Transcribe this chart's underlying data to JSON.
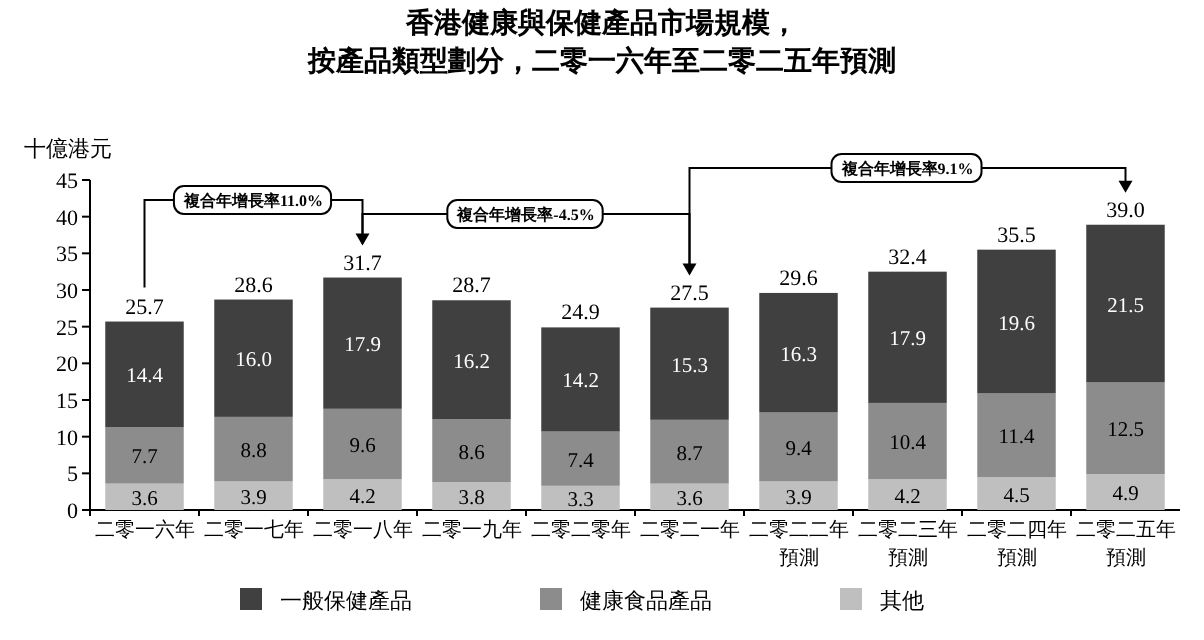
{
  "chart_data": {
    "type": "bar",
    "stacked": true,
    "title": "香港健康與保健產品市場規模，按產品類型劃分，二零一六年至二零二五年預測",
    "ylabel": "十億港元",
    "categories": [
      "二零一六年",
      "二零一七年",
      "二零一八年",
      "二零一九年",
      "二零二零年",
      "二零二一年",
      "二零二二年預測",
      "二零二三年預測",
      "二零二四年預測",
      "二零二五年預測"
    ],
    "series": [
      {
        "name": "其他",
        "color": "#bfbfbf",
        "values": [
          3.6,
          3.9,
          4.2,
          3.8,
          3.3,
          3.6,
          3.9,
          4.2,
          4.5,
          4.9
        ],
        "value_labels": [
          "3.6",
          "3.9",
          "4.2",
          "3.8",
          "3.3",
          "3.6",
          "3.9",
          "4.2",
          "4.5",
          "4.9"
        ]
      },
      {
        "name": "健康食品產品",
        "color": "#8c8c8c",
        "values": [
          7.7,
          8.8,
          9.6,
          8.6,
          7.4,
          8.7,
          9.4,
          10.4,
          11.4,
          12.5
        ],
        "value_labels": [
          "7.7",
          "8.8",
          "9.6",
          "8.6",
          "7.4",
          "8.7",
          "9.4",
          "10.4",
          "11.4",
          "12.5"
        ]
      },
      {
        "name": "一般保健產品",
        "color": "#404040",
        "values": [
          14.4,
          16.0,
          17.9,
          16.2,
          14.2,
          15.3,
          16.3,
          17.9,
          19.6,
          21.5
        ],
        "value_labels": [
          "14.4",
          "16.0",
          "17.9",
          "16.2",
          "14.2",
          "15.3",
          "16.3",
          "17.9",
          "19.6",
          "21.5"
        ]
      }
    ],
    "totals": [
      "25.7",
      "28.6",
      "31.7",
      "28.7",
      "24.9",
      "27.5",
      "29.6",
      "32.4",
      "35.5",
      "39.0"
    ],
    "annotations": [
      "複合年增長率11.0%",
      "複合年增長率-4.5%",
      "複合年增長率9.1%"
    ],
    "ylim": [
      0,
      45
    ],
    "yticks": [
      0,
      5,
      10,
      15,
      20,
      25,
      30,
      35,
      40,
      45
    ],
    "legend": "bottom",
    "grid": false
  }
}
